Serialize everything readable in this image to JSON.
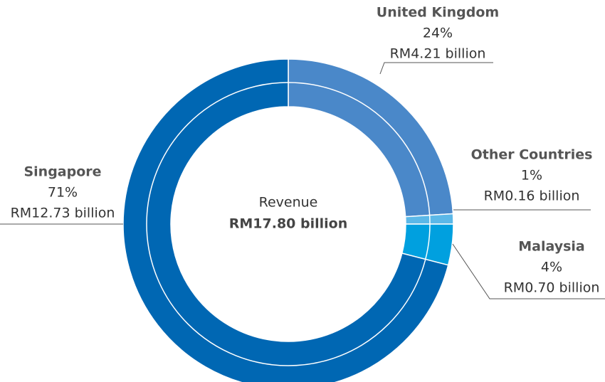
{
  "chart_data": {
    "type": "donut",
    "center_label": "Revenue",
    "center_total": "RM17.80 billion",
    "categories": [
      "United Kingdom",
      "Other Countries",
      "Malaysia",
      "Singapore"
    ],
    "values": [
      24,
      1,
      4,
      71
    ],
    "value_labels": [
      "24%",
      "1%",
      "4%",
      "71%"
    ],
    "amount_labels": [
      "RM4.21 billion",
      "RM0.16 billion",
      "RM0.70 billion",
      "RM12.73 billion"
    ],
    "colors": [
      "#4a88c9",
      "#5bb8e8",
      "#00a0df",
      "#0067b3"
    ]
  }
}
